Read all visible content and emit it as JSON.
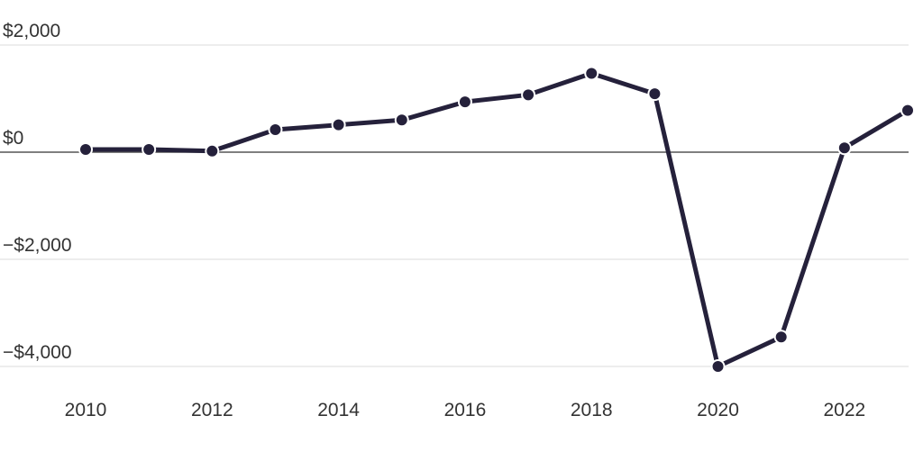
{
  "chart_data": {
    "type": "line",
    "title": "",
    "xlabel": "",
    "ylabel": "",
    "x": [
      2010,
      2011,
      2012,
      2013,
      2014,
      2015,
      2016,
      2017,
      2018,
      2019,
      2020,
      2021,
      2022,
      2023
    ],
    "series": [
      {
        "values": [
          50,
          50,
          20,
          420,
          510,
          600,
          940,
          1070,
          1470,
          1090,
          -4000,
          -3450,
          80,
          780
        ]
      }
    ],
    "xlim": [
      2010,
      2023
    ],
    "ylim": [
      -4000,
      2000
    ],
    "x_ticks": [
      2010,
      2012,
      2014,
      2016,
      2018,
      2020,
      2022
    ],
    "x_tick_labels": [
      "2010",
      "2012",
      "2014",
      "2016",
      "2018",
      "2020",
      "2022"
    ],
    "y_ticks": [
      2000,
      0,
      -2000,
      -4000
    ],
    "y_tick_labels": [
      "$2,000",
      "$0",
      "−$2,000",
      "−$4,000"
    ],
    "grid": true,
    "legend": "none",
    "colors": {
      "line": "#25213b",
      "grid": "#e2e2e2",
      "zero_line": "#555555",
      "text": "#333333",
      "background": "#ffffff"
    }
  }
}
